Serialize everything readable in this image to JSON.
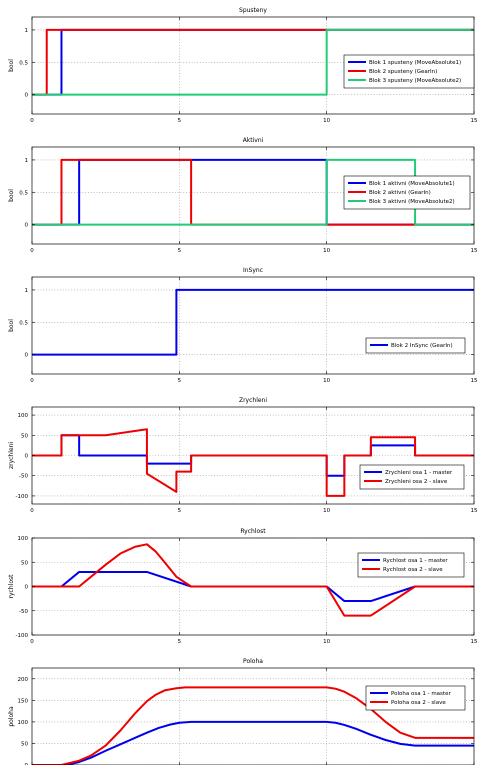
{
  "colors": {
    "blue": "#0000ee",
    "red": "#ee0000",
    "green": "#22cc77"
  },
  "chart_data": [
    {
      "type": "line",
      "title": "Spusteny",
      "ylabel": "bool",
      "xlim": [
        0,
        15
      ],
      "ylim": [
        -0.3,
        1.2
      ],
      "xticks": [
        0,
        5,
        10,
        15
      ],
      "xticklabels": [
        "0",
        "5",
        "10",
        "15"
      ],
      "yticks": [
        0,
        0.5,
        1
      ],
      "yticklabels": [
        "0",
        "0.5",
        "1"
      ],
      "grid": true,
      "legend_position": "right",
      "series": [
        {
          "name": "Blok 1 spusteny (MoveAbsolute1)",
          "color": "blue",
          "x": [
            0,
            1,
            1,
            15
          ],
          "y": [
            0,
            0,
            1,
            1
          ]
        },
        {
          "name": "Blok 2 spusteny (GearIn)",
          "color": "red",
          "x": [
            0,
            0.5,
            0.5,
            15
          ],
          "y": [
            0,
            0,
            1,
            1
          ]
        },
        {
          "name": "Blok 3 spusteny (MoveAbsolute2)",
          "color": "green",
          "x": [
            0,
            10,
            10,
            15
          ],
          "y": [
            0,
            0,
            1,
            1
          ]
        }
      ]
    },
    {
      "type": "line",
      "title": "Aktivni",
      "ylabel": "bool",
      "xlim": [
        0,
        15
      ],
      "ylim": [
        -0.3,
        1.2
      ],
      "xticks": [
        0,
        5,
        10,
        15
      ],
      "xticklabels": [
        "0",
        "5",
        "10",
        "15"
      ],
      "yticks": [
        0,
        0.5,
        1
      ],
      "yticklabels": [
        "0",
        "0.5",
        "1"
      ],
      "grid": true,
      "legend_position": "right",
      "series": [
        {
          "name": "Blok 1 aktivni (MoveAbsolute1)",
          "color": "blue",
          "x": [
            0,
            1.6,
            1.6,
            10,
            10,
            15
          ],
          "y": [
            0,
            0,
            1,
            1,
            0,
            0
          ]
        },
        {
          "name": "Blok 2 aktivni (GearIn)",
          "color": "red",
          "x": [
            0,
            1,
            1,
            5.4,
            5.4,
            15
          ],
          "y": [
            0,
            0,
            1,
            1,
            0,
            0
          ]
        },
        {
          "name": "Blok 3 aktivni (MoveAbsolute2)",
          "color": "green",
          "x": [
            0,
            10,
            10,
            13,
            13,
            15
          ],
          "y": [
            0,
            0,
            1,
            1,
            0,
            0
          ]
        }
      ]
    },
    {
      "type": "line",
      "title": "InSync",
      "ylabel": "bool",
      "xlim": [
        0,
        15
      ],
      "ylim": [
        -0.3,
        1.2
      ],
      "xticks": [
        0,
        5,
        10,
        15
      ],
      "xticklabels": [
        "0",
        "5",
        "10",
        "15"
      ],
      "yticks": [
        0,
        0.5,
        1
      ],
      "yticklabels": [
        "0",
        "0.5",
        "1"
      ],
      "grid": true,
      "legend_position": "right",
      "series": [
        {
          "name": "Blok 2 InSync (GearIn)",
          "color": "blue",
          "x": [
            0,
            4.9,
            4.9,
            15
          ],
          "y": [
            0,
            0,
            1,
            1
          ]
        }
      ]
    },
    {
      "type": "line",
      "title": "Zrychleni",
      "ylabel": "zrychleni",
      "xlim": [
        0,
        15
      ],
      "ylim": [
        -120,
        120
      ],
      "xticks": [
        0,
        5,
        10,
        15
      ],
      "xticklabels": [
        "0",
        "5",
        "10",
        "15"
      ],
      "yticks": [
        -100,
        -50,
        0,
        50,
        100
      ],
      "yticklabels": [
        "-100",
        "-50",
        "0",
        "50",
        "100"
      ],
      "grid": true,
      "legend_position": "right",
      "series": [
        {
          "name": "Zrychleni osa 1 - master",
          "color": "blue",
          "x": [
            0,
            1,
            1,
            1.6,
            1.6,
            3.9,
            3.9,
            5.4,
            5.4,
            10,
            10,
            10.6,
            10.6,
            11.5,
            11.5,
            13,
            13,
            15
          ],
          "y": [
            0,
            0,
            50,
            50,
            0,
            0,
            -20,
            -20,
            0,
            0,
            -50,
            -50,
            0,
            0,
            25,
            25,
            0,
            0
          ]
        },
        {
          "name": "Zrychleni osa 2 - slave",
          "color": "red",
          "x": [
            0,
            1,
            1,
            2.5,
            3.9,
            3.9,
            4.9,
            4.9,
            5.4,
            5.4,
            10,
            10,
            10.6,
            10.6,
            11.5,
            11.5,
            13,
            13,
            15
          ],
          "y": [
            0,
            0,
            50,
            50,
            65,
            -45,
            -90,
            -40,
            -40,
            0,
            0,
            -100,
            -100,
            0,
            0,
            45,
            45,
            0,
            0
          ]
        }
      ]
    },
    {
      "type": "line",
      "title": "Rychlost",
      "ylabel": "rychlost",
      "xlim": [
        0,
        15
      ],
      "ylim": [
        -100,
        100
      ],
      "xticks": [
        0,
        5,
        10,
        15
      ],
      "xticklabels": [
        "0",
        "5",
        "10",
        "15"
      ],
      "yticks": [
        -100,
        -50,
        0,
        50,
        100
      ],
      "yticklabels": [
        "-100",
        "-50",
        "0",
        "50",
        "100"
      ],
      "grid": true,
      "legend_position": "right",
      "series": [
        {
          "name": "Rychlost osa 1 - master",
          "color": "blue",
          "x": [
            0,
            1,
            1.6,
            3.9,
            5.4,
            10,
            10.6,
            11.5,
            13,
            15
          ],
          "y": [
            0,
            0,
            30,
            30,
            0,
            0,
            -30,
            -30,
            0,
            0
          ]
        },
        {
          "name": "Rychlost osa 2 - slave",
          "color": "red",
          "x": [
            0,
            1.6,
            2,
            2.5,
            3,
            3.5,
            3.9,
            4.2,
            4.5,
            4.9,
            5.4,
            10,
            10.6,
            11.5,
            13,
            15
          ],
          "y": [
            0,
            0,
            20,
            45,
            68,
            82,
            87,
            72,
            50,
            20,
            0,
            0,
            -60,
            -60,
            0,
            0
          ]
        }
      ]
    },
    {
      "type": "line",
      "title": "Poloha",
      "ylabel": "poloha",
      "xlim": [
        0,
        15
      ],
      "ylim": [
        0,
        225
      ],
      "xticks": [
        0,
        5,
        10,
        15
      ],
      "xticklabels": [
        "0",
        "5",
        "10",
        "15"
      ],
      "yticks": [
        0,
        50,
        100,
        150,
        200
      ],
      "yticklabels": [
        "0",
        "50",
        "100",
        "150",
        "200"
      ],
      "grid": true,
      "legend_position": "top-right",
      "series": [
        {
          "name": "Poloha osa 1 - master",
          "color": "blue",
          "x": [
            0,
            1,
            1.3,
            1.6,
            2,
            2.5,
            3,
            3.5,
            3.9,
            4.3,
            4.7,
            5,
            5.4,
            10,
            10.3,
            10.6,
            11,
            11.5,
            12,
            12.5,
            13,
            15
          ],
          "y": [
            0,
            0,
            2,
            7,
            17,
            33,
            48,
            63,
            75,
            86,
            94,
            98,
            100,
            100,
            98,
            93,
            84,
            70,
            58,
            49,
            45,
            45
          ]
        },
        {
          "name": "Poloha osa 2 - slave",
          "color": "red",
          "x": [
            0,
            1,
            1.6,
            2,
            2.5,
            3,
            3.5,
            3.9,
            4.2,
            4.5,
            4.9,
            5.2,
            5.4,
            10,
            10.3,
            10.6,
            11,
            11.5,
            12,
            12.5,
            13,
            15
          ],
          "y": [
            0,
            0,
            10,
            22,
            45,
            80,
            120,
            148,
            163,
            173,
            178,
            180,
            180,
            180,
            177,
            170,
            155,
            130,
            100,
            75,
            63,
            63
          ]
        }
      ]
    }
  ]
}
